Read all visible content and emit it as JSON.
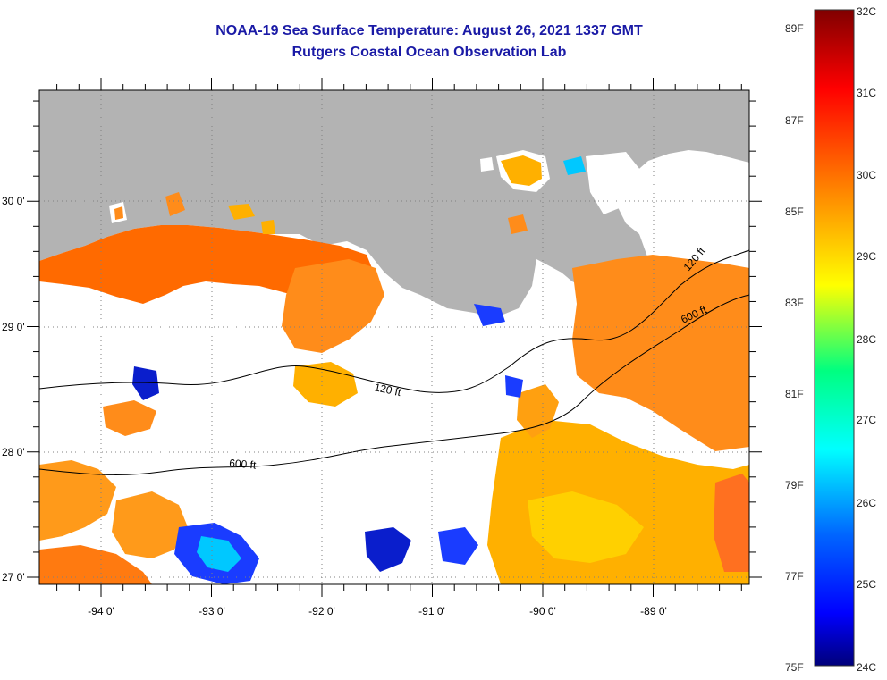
{
  "title": "NOAA-19 Sea Surface Temperature:  August 26, 2021 1337 GMT",
  "subtitle": "Rutgers Coastal Ocean Observation Lab",
  "map": {
    "lon_ticks": [
      "-94 0'",
      "-93 0'",
      "-92 0'",
      "-91 0'",
      "-90 0'",
      "-89 0'"
    ],
    "lat_ticks": [
      "30 0'",
      "29 0'",
      "28 0'",
      "27 0'"
    ],
    "contours": [
      "120 ft",
      "120 ft",
      "600 ft",
      "600 ft"
    ]
  },
  "colorbar": {
    "celsius": [
      "32C",
      "31C",
      "30C",
      "29C",
      "28C",
      "27C",
      "26C",
      "25C",
      "24C"
    ],
    "fahrenheit": [
      "89F",
      "87F",
      "85F",
      "83F",
      "81F",
      "79F",
      "77F",
      "75F"
    ]
  },
  "colors": {
    "land": "#b3b3b3",
    "title": "#1a1aa6"
  }
}
